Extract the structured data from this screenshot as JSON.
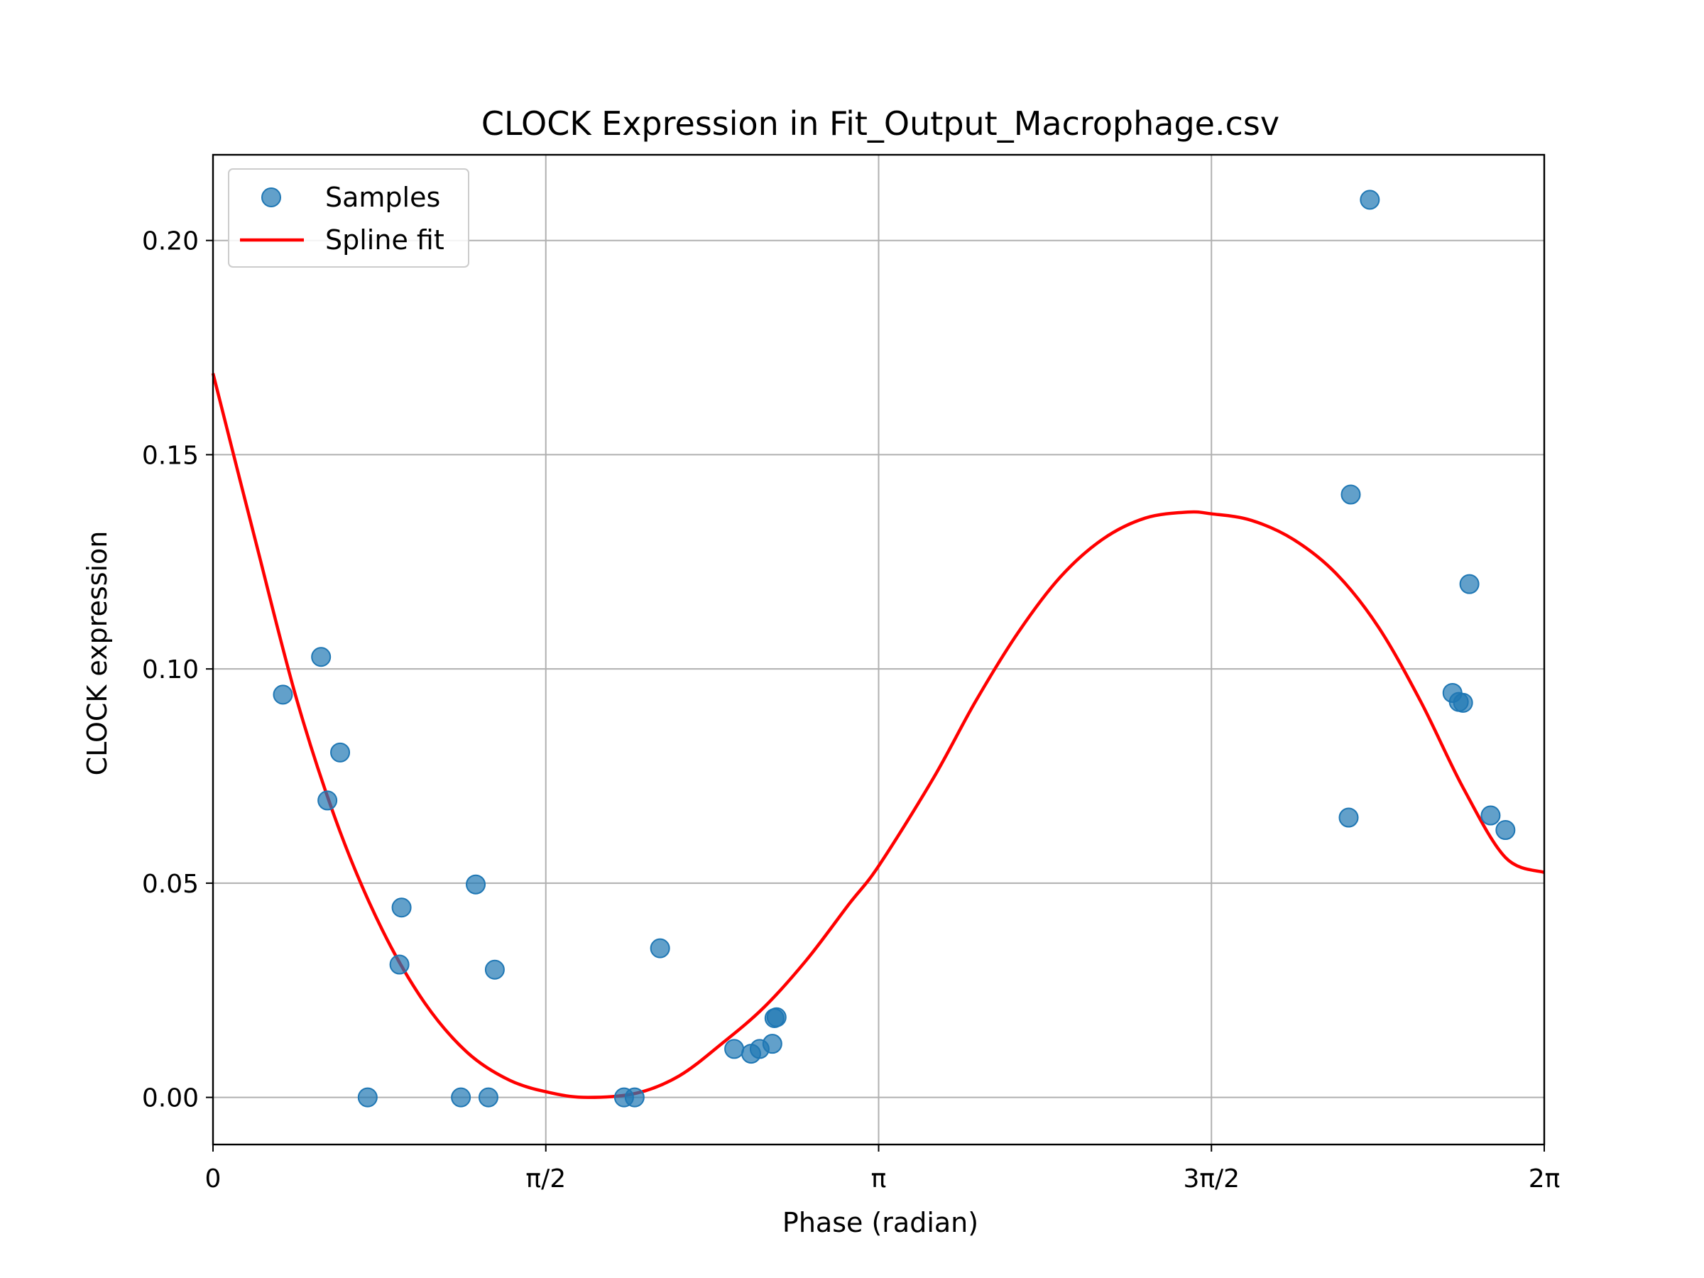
{
  "chart_data": {
    "type": "scatter",
    "title": "CLOCK Expression in Fit_Output_Macrophage.csv",
    "xlabel": "Phase (radian)",
    "ylabel": "CLOCK expression",
    "xlim": [
      0,
      6.2832
    ],
    "ylim": [
      -0.011,
      0.22
    ],
    "grid": true,
    "legend_position": "upper-left",
    "x_ticks": [
      {
        "value": 0,
        "label": "0"
      },
      {
        "value": 1.5708,
        "label": "π/2"
      },
      {
        "value": 3.1416,
        "label": "π"
      },
      {
        "value": 4.7124,
        "label": "3π/2"
      },
      {
        "value": 6.2832,
        "label": "2π"
      }
    ],
    "y_ticks": [
      {
        "value": 0.0,
        "label": "0.00"
      },
      {
        "value": 0.05,
        "label": "0.05"
      },
      {
        "value": 0.1,
        "label": "0.10"
      },
      {
        "value": 0.15,
        "label": "0.15"
      },
      {
        "value": 0.2,
        "label": "0.20"
      }
    ],
    "series": [
      {
        "name": "Samples",
        "kind": "scatter",
        "color": "#1f77b4",
        "points": [
          [
            0.33,
            0.094
          ],
          [
            0.51,
            0.1028
          ],
          [
            0.54,
            0.0693
          ],
          [
            0.6,
            0.0805
          ],
          [
            0.73,
            0.0
          ],
          [
            0.88,
            0.031
          ],
          [
            0.89,
            0.0443
          ],
          [
            1.17,
            0.0
          ],
          [
            1.24,
            0.0497
          ],
          [
            1.3,
            0.0
          ],
          [
            1.33,
            0.0298
          ],
          [
            1.94,
            0.0
          ],
          [
            1.99,
            0.0
          ],
          [
            2.11,
            0.0348
          ],
          [
            2.46,
            0.0113
          ],
          [
            2.54,
            0.0102
          ],
          [
            2.58,
            0.0113
          ],
          [
            2.64,
            0.0125
          ],
          [
            2.65,
            0.0185
          ],
          [
            2.66,
            0.0187
          ],
          [
            5.36,
            0.0653
          ],
          [
            5.37,
            0.1407
          ],
          [
            5.46,
            0.2095
          ],
          [
            5.85,
            0.0944
          ],
          [
            5.88,
            0.0923
          ],
          [
            5.9,
            0.0921
          ],
          [
            5.93,
            0.1198
          ],
          [
            6.03,
            0.0658
          ],
          [
            6.1,
            0.0624
          ]
        ]
      },
      {
        "name": "Spline fit",
        "kind": "line",
        "color": "#ff0000",
        "points": [
          [
            0.0,
            0.169
          ],
          [
            0.2,
            0.13
          ],
          [
            0.4,
            0.092
          ],
          [
            0.6,
            0.062
          ],
          [
            0.8,
            0.039
          ],
          [
            1.0,
            0.022
          ],
          [
            1.2,
            0.0105
          ],
          [
            1.4,
            0.004
          ],
          [
            1.6,
            0.001
          ],
          [
            1.77,
            0.0
          ],
          [
            2.0,
            0.001
          ],
          [
            2.2,
            0.005
          ],
          [
            2.4,
            0.0125
          ],
          [
            2.6,
            0.021
          ],
          [
            2.8,
            0.032
          ],
          [
            3.0,
            0.045
          ],
          [
            3.1416,
            0.054
          ],
          [
            3.4,
            0.0745
          ],
          [
            3.6,
            0.0925
          ],
          [
            3.8,
            0.1085
          ],
          [
            4.0,
            0.1215
          ],
          [
            4.2,
            0.1303
          ],
          [
            4.4,
            0.1352
          ],
          [
            4.6,
            0.1366
          ],
          [
            4.7124,
            0.1362
          ],
          [
            4.9,
            0.1347
          ],
          [
            5.1,
            0.1302
          ],
          [
            5.3,
            0.1223
          ],
          [
            5.5,
            0.1098
          ],
          [
            5.7,
            0.0924
          ],
          [
            5.9,
            0.0723
          ],
          [
            6.1,
            0.056
          ],
          [
            6.2832,
            0.0525
          ]
        ]
      }
    ]
  }
}
